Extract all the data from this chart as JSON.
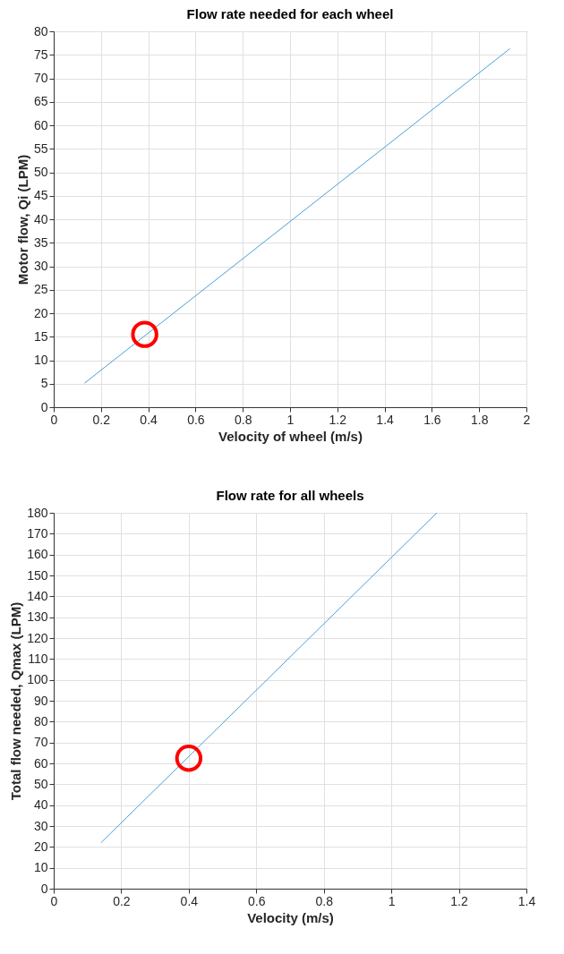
{
  "chart_data": [
    {
      "type": "line",
      "title": "Flow rate needed for each wheel",
      "xlabel": "Velocity of wheel (m/s)",
      "ylabel": "Motor flow, Qi (LPM)",
      "xlim": [
        0,
        2
      ],
      "xticks": [
        0,
        0.2,
        0.4,
        0.6,
        0.8,
        1,
        1.2,
        1.4,
        1.6,
        1.8,
        2
      ],
      "ylim": [
        0,
        80
      ],
      "yticks": [
        0,
        5,
        10,
        15,
        20,
        25,
        30,
        35,
        40,
        45,
        50,
        55,
        60,
        65,
        70,
        75,
        80
      ],
      "grid": true,
      "series": [
        {
          "type": "line",
          "color": "#4a9fd8",
          "x": [
            0.13,
            1.93
          ],
          "values": [
            5.1,
            76.3
          ]
        },
        {
          "type": "scatter",
          "color": "#ff0000",
          "marker": "circle",
          "x": [
            0.385
          ],
          "values": [
            15.5
          ]
        }
      ]
    },
    {
      "type": "line",
      "title": "Flow rate for all wheels",
      "xlabel": "Velocity (m/s)",
      "ylabel": "Total flow needed, Qmax (LPM)",
      "xlim": [
        0,
        1.4
      ],
      "xticks": [
        0,
        0.2,
        0.4,
        0.6,
        0.8,
        1,
        1.2,
        1.4
      ],
      "ylim": [
        0,
        180
      ],
      "yticks": [
        0,
        10,
        20,
        30,
        40,
        50,
        60,
        70,
        80,
        90,
        100,
        110,
        120,
        130,
        140,
        150,
        160,
        170,
        180
      ],
      "grid": true,
      "series": [
        {
          "type": "line",
          "color": "#4a9fd8",
          "x": [
            0.14,
            1.135
          ],
          "values": [
            22,
            180
          ]
        },
        {
          "type": "scatter",
          "color": "#ff0000",
          "marker": "circle",
          "x": [
            0.4
          ],
          "values": [
            62.5
          ]
        }
      ]
    }
  ]
}
